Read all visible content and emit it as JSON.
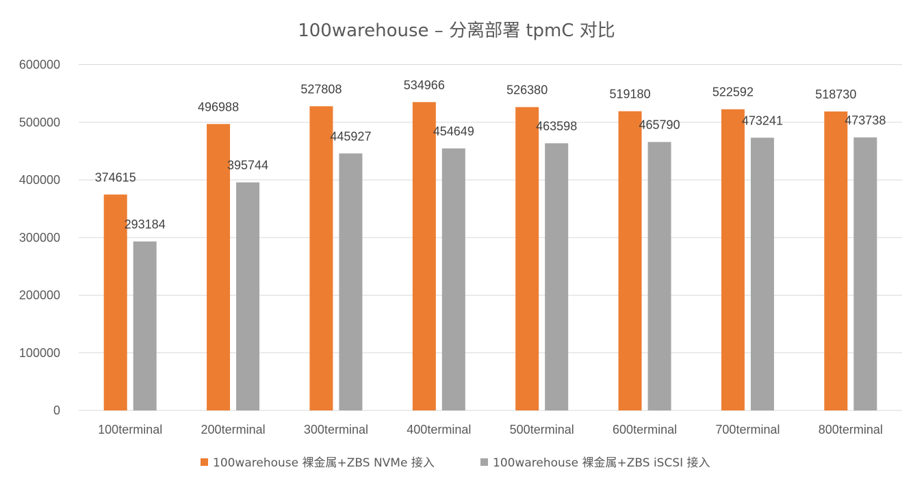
{
  "chart_data": {
    "type": "bar",
    "title": "100warehouse – 分离部署 tpmC 对比",
    "categories": [
      "100terminal",
      "200terminal",
      "300terminal",
      "400terminal",
      "500terminal",
      "600terminal",
      "700terminal",
      "800terminal"
    ],
    "series": [
      {
        "name": "100warehouse 裸金属+ZBS NVMe 接入",
        "color": "#ED7D31",
        "values": [
          374615,
          496988,
          527808,
          534966,
          526380,
          519180,
          522592,
          518730
        ]
      },
      {
        "name": "100warehouse 裸金属+ZBS iSCSI 接入",
        "color": "#A5A5A5",
        "values": [
          293184,
          395744,
          445927,
          454649,
          463598,
          465790,
          473241,
          473738
        ]
      }
    ],
    "yticks": [
      0,
      100000,
      200000,
      300000,
      400000,
      500000,
      600000
    ],
    "ylim": [
      0,
      600000
    ],
    "grid": true,
    "legend_position": "bottom",
    "data_labels": true
  }
}
